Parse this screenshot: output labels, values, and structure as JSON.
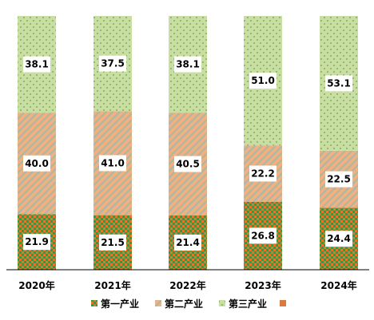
{
  "chart_data": {
    "type": "bar",
    "stacked": true,
    "categories": [
      "2020年",
      "2021年",
      "2022年",
      "2023年",
      "2024年"
    ],
    "series": [
      {
        "name": "第一产业",
        "values": [
          21.9,
          21.5,
          21.4,
          26.8,
          24.4
        ]
      },
      {
        "name": "第二产业",
        "values": [
          40.0,
          41.0,
          40.5,
          22.2,
          22.5
        ]
      },
      {
        "name": "第三产业",
        "values": [
          38.1,
          37.5,
          38.1,
          51.0,
          53.1
        ]
      }
    ],
    "value_labels": [
      [
        "21.9",
        "21.5",
        "21.4",
        "26.8",
        "24.4"
      ],
      [
        "40.0",
        "41.0",
        "40.5",
        "22.2",
        "22.5"
      ],
      [
        "38.1",
        "37.5",
        "38.1",
        "51.0",
        "53.1"
      ]
    ],
    "title": "",
    "xlabel": "",
    "ylabel": "",
    "ylim": [
      0,
      100
    ],
    "grid": false,
    "legend_position": "bottom",
    "colors": {
      "series1_bg": "#2e9b46",
      "series1_fg": "#e07a2a",
      "series2_bg": "#f1b080",
      "series2_fg": "#a9b7a5",
      "series3_bg": "#c8dea2",
      "series3_fg": "#6f9f3f",
      "axis": "#000000"
    }
  }
}
